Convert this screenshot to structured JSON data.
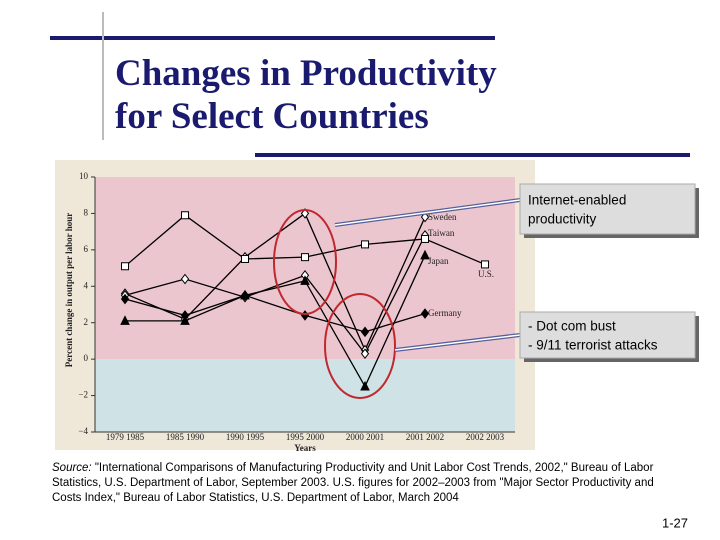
{
  "chart_data": {
    "type": "line",
    "title": [
      "Changes in Productivity",
      "for Select Countries"
    ],
    "y_label": "Percent change in output per labor hour",
    "x_label": "Years",
    "categories": [
      "1979 1985",
      "1985 1990",
      "1990 1995",
      "1995 2000",
      "2000 2001",
      "2001 2002",
      "2002 2003"
    ],
    "series": [
      {
        "name": "Sweden",
        "color": "#000000",
        "marker": "open-diamond",
        "values": [
          3.6,
          2.2,
          5.6,
          8.0,
          0.5,
          7.8,
          null
        ]
      },
      {
        "name": "Taiwan",
        "color": "#000000",
        "marker": "open-diamond",
        "values": [
          3.5,
          4.4,
          3.4,
          4.6,
          0.3,
          6.8,
          null
        ]
      },
      {
        "name": "Japan",
        "color": "#000000",
        "marker": "triangle",
        "values": [
          2.1,
          2.1,
          3.5,
          4.3,
          -1.5,
          5.7,
          null
        ]
      },
      {
        "name": "U.S.",
        "color": "#000000",
        "marker": "open-square",
        "values": [
          5.1,
          7.9,
          5.5,
          5.6,
          6.3,
          6.6,
          5.2
        ]
      },
      {
        "name": "Germany",
        "color": "#000000",
        "marker": "diamond",
        "values": [
          3.3,
          2.4,
          3.5,
          2.4,
          1.5,
          2.5,
          null
        ]
      }
    ],
    "ylim": [
      -4,
      10
    ],
    "yticks": [
      {
        "value": -4,
        "label": "−4"
      },
      {
        "value": -2,
        "label": "−2"
      },
      0,
      2,
      4,
      6,
      8,
      10
    ],
    "annotations": [
      "Internet-enabled",
      "productivity",
      "- Dot com bust",
      "- 9/11 terrorist attacks"
    ],
    "source": [
      "Source:",
      " \"International Comparisons of Manufacturing Productivity and Unit Labor Cost Trends, 2002,\" Bureau of Labor",
      "Statistics, U.S. Department of Labor, September 2003. U.S. figures for 2002–2003 from \"Major Sector Productivity and",
      "Costs Index,\" Bureau of Labor Statistics, U.S. Department of Labor, March 2004"
    ],
    "page_number": "1-27"
  }
}
